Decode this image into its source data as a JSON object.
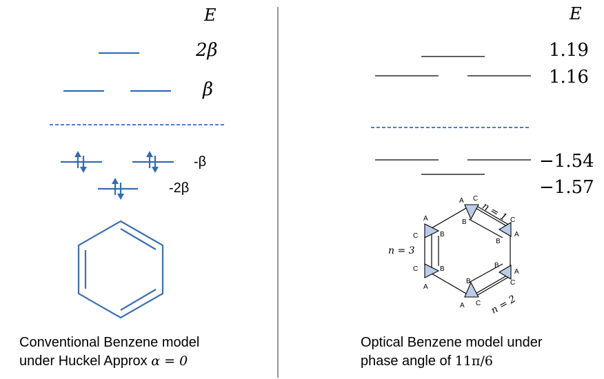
{
  "left_panel": {
    "energy_axis_label": "E",
    "levels": [
      {
        "label": "2β"
      },
      {
        "label": "β"
      },
      {
        "label": "-β"
      },
      {
        "label": "-2β"
      }
    ],
    "caption_line1": "Conventional Benzene model",
    "caption_line2_text": "under Huckel Approx ",
    "caption_line2_math": "α = 0"
  },
  "right_panel": {
    "energy_axis_label": "E",
    "energies": [
      "1.19",
      "1.16",
      "−1.54",
      "−1.57"
    ],
    "caption_line1": "Optical Benzene model under",
    "caption_line2_text": "phase angle of ",
    "caption_line2_math": "11π/6",
    "ring_site_labels": {
      "a": "A",
      "b": "B",
      "c": "C"
    },
    "ring_n_labels": [
      "n = 1",
      "n = 2",
      "n = 3"
    ]
  },
  "colors": {
    "level_blue": "#2e6db4",
    "benzene_blue": "#3a6fb0",
    "triangle_fill": "#b9cde8",
    "divider": "#555555"
  }
}
